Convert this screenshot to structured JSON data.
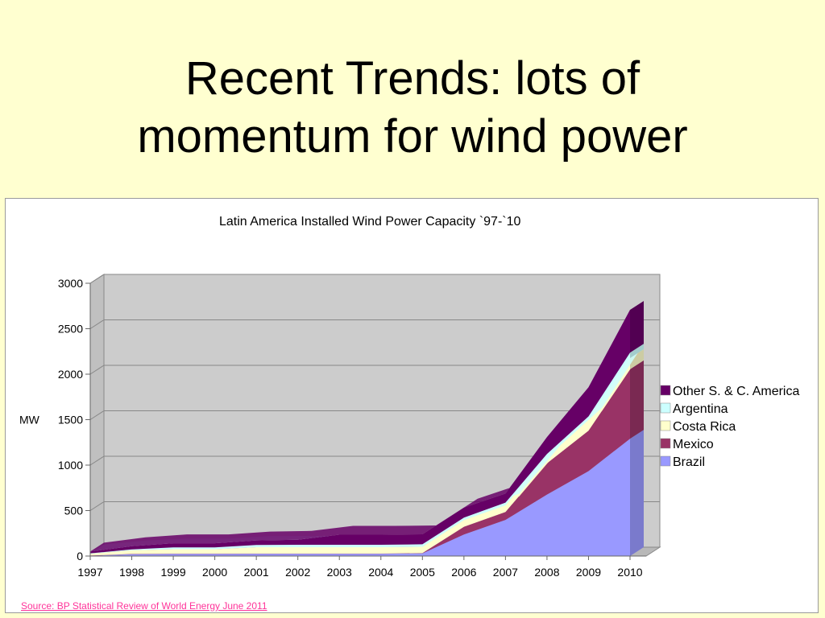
{
  "slide": {
    "title_line1": "Recent Trends: lots of",
    "title_line2": "momentum for wind power",
    "source": "Source: BP Statistical Review of World Energy June 2011"
  },
  "colors": {
    "background": "#ffffd0",
    "plot_area": "#cccccc",
    "brazil": "#9999ff",
    "mexico": "#993366",
    "costa_rica": "#ffffcc",
    "argentina": "#ccffff",
    "other": "#660066",
    "source_text": "#ff3399"
  },
  "chart_data": {
    "type": "area",
    "stacked": true,
    "title": "Latin America Installed Wind Power Capacity `97-`10",
    "xlabel": "",
    "ylabel": "MW",
    "ylim": [
      0,
      3000
    ],
    "yticks": [
      0,
      500,
      1000,
      1500,
      2000,
      2500,
      3000
    ],
    "grid": true,
    "legend_position": "right",
    "categories": [
      "1997",
      "1998",
      "1999",
      "2000",
      "2001",
      "2002",
      "2003",
      "2004",
      "2005",
      "2006",
      "2007",
      "2008",
      "2009",
      "2010"
    ],
    "series": [
      {
        "name": "Brazil",
        "color": "#9999ff",
        "values": [
          3,
          20,
          22,
          22,
          24,
          24,
          24,
          24,
          29,
          237,
          397,
          676,
          934,
          1290
        ]
      },
      {
        "name": "Mexico",
        "color": "#993366",
        "values": [
          2,
          3,
          3,
          3,
          3,
          3,
          3,
          3,
          3,
          85,
          87,
          344,
          444,
          764
        ]
      },
      {
        "name": "Costa Rica",
        "color": "#ffffcc",
        "values": [
          20,
          40,
          50,
          50,
          70,
          70,
          70,
          70,
          70,
          74,
          74,
          74,
          123,
          123
        ]
      },
      {
        "name": "Argentina",
        "color": "#ccffff",
        "values": [
          5,
          10,
          20,
          20,
          25,
          27,
          27,
          27,
          27,
          27,
          29,
          29,
          34,
          60
        ]
      },
      {
        "name": "Other S. & C. America",
        "color": "#660066",
        "values": [
          20,
          35,
          45,
          45,
          50,
          55,
          110,
          110,
          110,
          110,
          100,
          185,
          320,
          470
        ]
      }
    ],
    "legend_order": [
      "Other S. & C. America",
      "Argentina",
      "Costa Rica",
      "Mexico",
      "Brazil"
    ]
  }
}
